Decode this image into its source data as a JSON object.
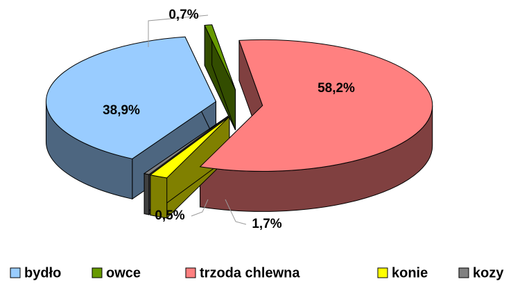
{
  "chart_data": {
    "type": "pie",
    "categories": [
      "bydło",
      "owce",
      "trzoda chlewna",
      "konie",
      "kozy"
    ],
    "values": [
      38.9,
      0.7,
      58.2,
      1.7,
      0.5
    ],
    "value_labels": [
      "38,9%",
      "0,7%",
      "58,2%",
      "1,7%",
      "0,5%"
    ],
    "colors": [
      "#99ccff",
      "#669900",
      "#ff8080",
      "#ffff00",
      "#808080"
    ],
    "side_colors": [
      "#4d6680",
      "#334d00",
      "#804040",
      "#808000",
      "#404040"
    ],
    "legend": "bottom"
  }
}
